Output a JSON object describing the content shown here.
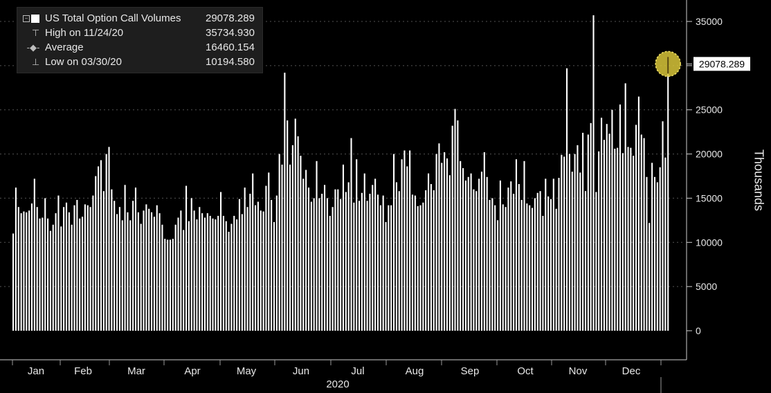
{
  "legend": {
    "series_label": "US Total Option Call Volumes",
    "series_value": "29078.289",
    "high_label": "High on 11/24/20",
    "high_value": "35734.930",
    "avg_label": "Average",
    "avg_value": "16460.154",
    "low_label": "Low on 03/30/20",
    "low_value": "10194.580"
  },
  "last_value_badge": "29078.289",
  "colors": {
    "background": "#000000",
    "bars": "#ffffff",
    "marker": "#d8c63a",
    "grid": "#555555"
  },
  "chart_data": {
    "type": "bar",
    "ylabel": "Thousands",
    "xlabel": "2020",
    "ylim": [
      0,
      35000
    ],
    "y_ticks": [
      0,
      5000,
      10000,
      15000,
      20000,
      25000,
      30000,
      35000
    ],
    "x_ticks": [
      "Jan",
      "Feb",
      "Mar",
      "Apr",
      "May",
      "Jun",
      "Jul",
      "Aug",
      "Sep",
      "Oct",
      "Nov",
      "Dec"
    ],
    "grid": true,
    "values": [
      11000,
      16200,
      14000,
      13300,
      13500,
      13400,
      13600,
      14400,
      17200,
      14000,
      12700,
      12800,
      15000,
      12700,
      11300,
      12000,
      13300,
      15300,
      11800,
      14000,
      14500,
      13400,
      12000,
      14200,
      14800,
      12700,
      12900,
      14300,
      14200,
      14000,
      15300,
      17500,
      18600,
      19300,
      15800,
      20000,
      20800,
      16000,
      14700,
      13200,
      14000,
      12500,
      16500,
      13400,
      12500,
      14700,
      16200,
      13400,
      12100,
      13600,
      14300,
      13800,
      13400,
      12900,
      14200,
      13300,
      12000,
      10400,
      10300,
      10300,
      10400,
      12000,
      12800,
      13600,
      11400,
      16400,
      12400,
      15000,
      13600,
      12600,
      14000,
      13300,
      12800,
      13300,
      13000,
      12700,
      12600,
      13000,
      15700,
      13000,
      12400,
      11200,
      12100,
      13000,
      12600,
      14900,
      13200,
      16200,
      14000,
      15500,
      17800,
      14200,
      14600,
      13600,
      13500,
      16400,
      17900,
      14800,
      12300,
      15300,
      20000,
      18800,
      29200,
      23800,
      18800,
      21000,
      24000,
      22000,
      19800,
      17200,
      18200,
      16200,
      14600,
      15000,
      19200,
      15000,
      15500,
      16500,
      15000,
      13000,
      14000,
      16000,
      16000,
      14900,
      18800,
      15700,
      16800,
      21800,
      14500,
      19400,
      14700,
      15600,
      17800,
      14700,
      15500,
      16500,
      17200,
      15400,
      14200,
      15300,
      12300,
      14200,
      14200,
      20000,
      16800,
      15800,
      19400,
      20400,
      18600,
      20400,
      15400,
      15300,
      14100,
      14200,
      14500,
      15900,
      17800,
      16600,
      15900,
      20000,
      21200,
      19000,
      20200,
      19500,
      17600,
      23200,
      25100,
      23800,
      19200,
      18400,
      17000,
      17400,
      17800,
      16000,
      15800,
      17200,
      18000,
      20200,
      17400,
      14800,
      15000,
      14200,
      12500,
      17000,
      14300,
      14000,
      16200,
      16900,
      15500,
      19400,
      16600,
      14800,
      19200,
      14400,
      14200,
      13900,
      15000,
      15600,
      15800,
      13000,
      17200,
      15200,
      14900,
      17200,
      13800,
      17300,
      19900,
      19700,
      29700,
      20000,
      18000,
      20000,
      21000,
      17900,
      22400,
      15800,
      22200,
      23500,
      35700,
      15700,
      20300,
      24100,
      21600,
      23400,
      22300,
      25000,
      20600,
      20700,
      25600,
      20100,
      28000,
      20800,
      20700,
      19800,
      23300,
      26500,
      22200,
      21800,
      17400,
      12200,
      19000,
      17400,
      16800,
      18500,
      23700,
      19600,
      29100
    ]
  }
}
